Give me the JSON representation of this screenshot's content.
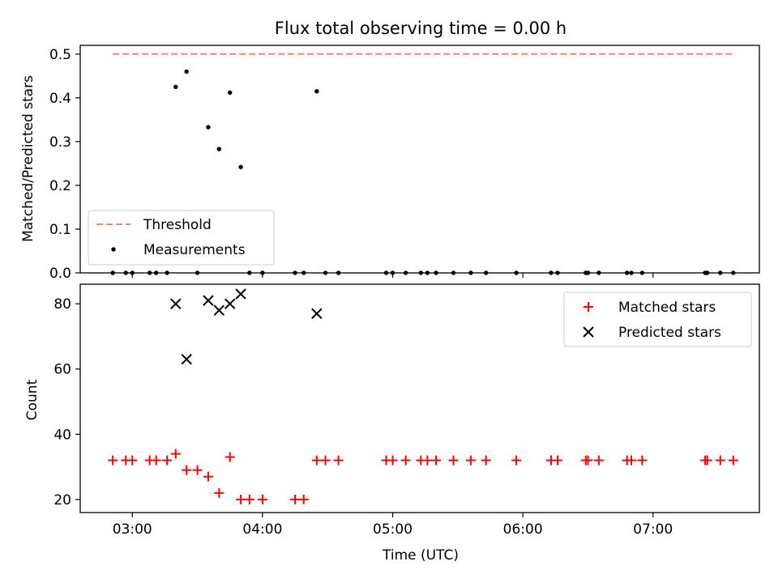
{
  "colors": {
    "threshold": "#ff7f7f",
    "matched": "#ff0000",
    "predicted": "#000000",
    "measurement": "#000000"
  },
  "chart_data": [
    {
      "type": "scatter",
      "title": "Flux total observing time = 0.00 h",
      "xlabel": "",
      "ylabel": "Matched/Predicted stars",
      "xlim": [
        "02:36",
        "07:49"
      ],
      "ylim": [
        0,
        0.52
      ],
      "yticks": [
        "0.0",
        "0.1",
        "0.2",
        "0.3",
        "0.4",
        "0.5"
      ],
      "grid": false,
      "legend_position": "lower-left",
      "threshold": {
        "name": "Threshold",
        "value": 0.5,
        "x_range": [
          "02:51",
          "07:37"
        ],
        "style": "dashed"
      },
      "series": [
        {
          "name": "Measurements",
          "marker": "dot",
          "points": [
            [
              "02:51",
              0
            ],
            [
              "02:57",
              0
            ],
            [
              "03:00",
              0
            ],
            [
              "03:08",
              0
            ],
            [
              "03:11",
              0
            ],
            [
              "03:16",
              0
            ],
            [
              "03:20",
              0.425
            ],
            [
              "03:25",
              0.46
            ],
            [
              "03:30",
              0
            ],
            [
              "03:35",
              0.333
            ],
            [
              "03:40",
              0.283
            ],
            [
              "03:45",
              0.412
            ],
            [
              "03:50",
              0.242
            ],
            [
              "03:54",
              0
            ],
            [
              "04:00",
              0
            ],
            [
              "04:15",
              0
            ],
            [
              "04:19",
              0
            ],
            [
              "04:25",
              0.415
            ],
            [
              "04:29",
              0
            ],
            [
              "04:35",
              0
            ],
            [
              "04:57",
              0
            ],
            [
              "05:00",
              0
            ],
            [
              "05:06",
              0
            ],
            [
              "05:13",
              0
            ],
            [
              "05:16",
              0
            ],
            [
              "05:20",
              0
            ],
            [
              "05:28",
              0
            ],
            [
              "05:36",
              0
            ],
            [
              "05:43",
              0
            ],
            [
              "05:57",
              0
            ],
            [
              "06:13",
              0
            ],
            [
              "06:16",
              0
            ],
            [
              "06:29",
              0
            ],
            [
              "06:30",
              0
            ],
            [
              "06:35",
              0
            ],
            [
              "06:48",
              0
            ],
            [
              "06:50",
              0
            ],
            [
              "06:55",
              0
            ],
            [
              "07:24",
              0
            ],
            [
              "07:25",
              0
            ],
            [
              "07:31",
              0
            ],
            [
              "07:37",
              0
            ]
          ]
        }
      ]
    },
    {
      "type": "scatter",
      "title": "",
      "xlabel": "Time (UTC)",
      "ylabel": "Count",
      "xlim": [
        "02:36",
        "07:49"
      ],
      "xticks": [
        "03:00",
        "04:00",
        "05:00",
        "06:00",
        "07:00"
      ],
      "ylim": [
        16,
        86
      ],
      "yticks": [
        "20",
        "40",
        "60",
        "80"
      ],
      "grid": false,
      "legend_position": "top-right",
      "series": [
        {
          "name": "Matched stars",
          "marker": "plus",
          "points": [
            [
              "02:51",
              32
            ],
            [
              "02:57",
              32
            ],
            [
              "03:00",
              32
            ],
            [
              "03:08",
              32
            ],
            [
              "03:11",
              32
            ],
            [
              "03:16",
              32
            ],
            [
              "03:20",
              34
            ],
            [
              "03:25",
              29
            ],
            [
              "03:30",
              29
            ],
            [
              "03:35",
              27
            ],
            [
              "03:40",
              22
            ],
            [
              "03:45",
              33
            ],
            [
              "03:50",
              20
            ],
            [
              "03:54",
              20
            ],
            [
              "04:00",
              20
            ],
            [
              "04:15",
              20
            ],
            [
              "04:19",
              20
            ],
            [
              "04:25",
              32
            ],
            [
              "04:29",
              32
            ],
            [
              "04:35",
              32
            ],
            [
              "04:57",
              32
            ],
            [
              "05:00",
              32
            ],
            [
              "05:06",
              32
            ],
            [
              "05:13",
              32
            ],
            [
              "05:16",
              32
            ],
            [
              "05:20",
              32
            ],
            [
              "05:28",
              32
            ],
            [
              "05:36",
              32
            ],
            [
              "05:43",
              32
            ],
            [
              "05:57",
              32
            ],
            [
              "06:13",
              32
            ],
            [
              "06:16",
              32
            ],
            [
              "06:29",
              32
            ],
            [
              "06:30",
              32
            ],
            [
              "06:35",
              32
            ],
            [
              "06:48",
              32
            ],
            [
              "06:50",
              32
            ],
            [
              "06:55",
              32
            ],
            [
              "07:24",
              32
            ],
            [
              "07:25",
              32
            ],
            [
              "07:31",
              32
            ],
            [
              "07:37",
              32
            ]
          ]
        },
        {
          "name": "Predicted stars",
          "marker": "x",
          "points": [
            [
              "03:20",
              80
            ],
            [
              "03:25",
              63
            ],
            [
              "03:35",
              81
            ],
            [
              "03:40",
              78
            ],
            [
              "03:45",
              80
            ],
            [
              "03:50",
              83
            ],
            [
              "04:25",
              77
            ]
          ]
        }
      ]
    }
  ]
}
